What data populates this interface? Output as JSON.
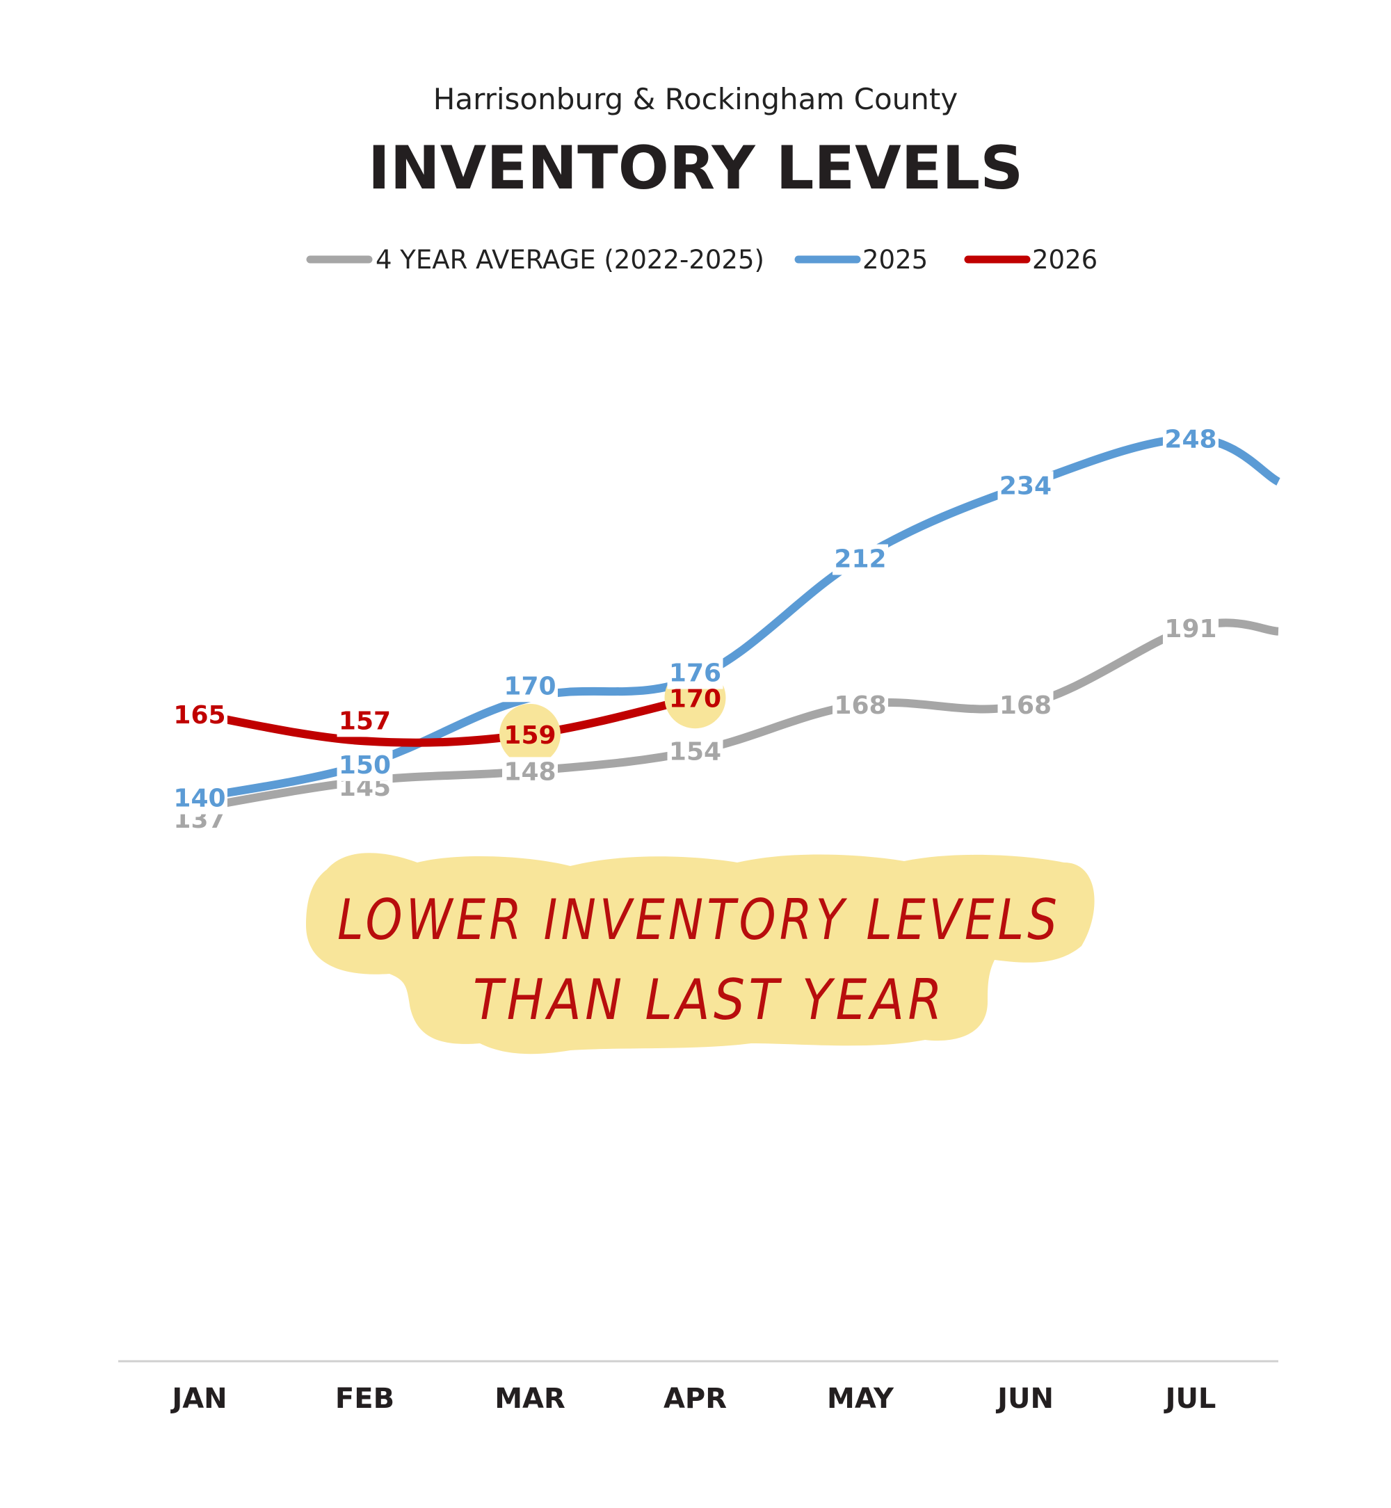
{
  "colors": {
    "average": "#a6a6a6",
    "y2025": "#5b9bd5",
    "y2026": "#c00000",
    "highlight": "#f8e59a",
    "axis": "#d0d0d0",
    "note": "#b80d0d"
  },
  "annotation": {
    "line1": "LOWER INVENTORY LEVELS",
    "line2": "THAN LAST YEAR"
  },
  "chart_data": {
    "type": "line",
    "subtitle": "Harrisonburg & Rockingham County",
    "title": "INVENTORY LEVELS",
    "categories": [
      "JAN",
      "FEB",
      "MAR",
      "APR",
      "MAY",
      "JUN",
      "JUL"
    ],
    "legend_position": "top-center",
    "grid": false,
    "series": [
      {
        "key": "average",
        "name": "4 YEAR AVERAGE (2022-2025)",
        "values": [
          137,
          145,
          148,
          154,
          168,
          168,
          191
        ],
        "continues_past_jul": true
      },
      {
        "key": "y2025",
        "name": "2025",
        "values": [
          140,
          150,
          170,
          176,
          212,
          234,
          248
        ],
        "continues_past_jul": true
      },
      {
        "key": "y2026",
        "name": "2026",
        "values": [
          165,
          157,
          159,
          170,
          null,
          null,
          null
        ],
        "continues_past_jul": false
      }
    ],
    "highlighted_points": [
      {
        "series": "y2026",
        "category": "MAR"
      },
      {
        "series": "y2026",
        "category": "APR"
      }
    ]
  }
}
